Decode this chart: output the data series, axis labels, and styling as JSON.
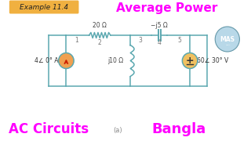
{
  "bg_color": "#ffffff",
  "title_box_text": "Example 11.4",
  "title_box_bg_left": "#f0c060",
  "title_box_bg_right": "#f8e0a0",
  "avg_power_text": "Average Power",
  "avg_power_color": "#ff00ff",
  "ac_circuits_text": "AC Circuits",
  "ac_circuits_color": "#ff00ff",
  "bangla_text": "Bangla",
  "bangla_color": "#ff00ff",
  "sub_a_text": "(a)",
  "sub_a_color": "#888888",
  "circuit_color": "#5ba8b0",
  "node_label_color": "#777777",
  "source_left_label": "4∠ 0° A",
  "source_right_label": "60∠ 30° V",
  "resistor_label": "20 Ω",
  "capacitor_label": "−j5 Ω",
  "inductor_label": "j10 Ω",
  "src_left_color": "#f0a050",
  "src_right_color": "#f0c060",
  "arrow_color": "#cc2200"
}
